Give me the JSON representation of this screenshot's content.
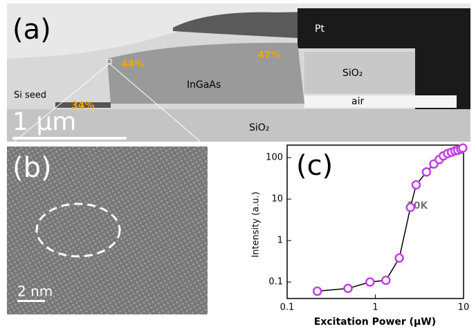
{
  "panel_a": {
    "label": "(a)",
    "texts": [
      "Pt",
      "SiO₂",
      "InGaAs",
      "air",
      "Si seed",
      "SiO₂"
    ],
    "percents": [
      "44%",
      "47%",
      "34%"
    ],
    "scale_bar": "1 μm"
  },
  "panel_b": {
    "label": "(b)",
    "scale_bar": "2 nm"
  },
  "chart_data": {
    "type": "scatter",
    "label": "(c)",
    "annotation": "10K",
    "x_label": "Excitation Power (μW)",
    "y_label": "Intensity (a.u.)",
    "x": [
      0.22,
      0.49,
      0.87,
      1.32,
      1.87,
      2.5,
      2.9,
      3.8,
      4.6,
      5.3,
      5.9,
      6.6,
      7.3,
      8.0,
      8.6,
      9.3,
      9.8
    ],
    "values": [
      0.06,
      0.07,
      0.1,
      0.11,
      0.38,
      6.3,
      22,
      45,
      70,
      90,
      110,
      125,
      135,
      145,
      150,
      160,
      170
    ],
    "color": "#c040e0",
    "line_color": "#000000",
    "xlim": [
      0.1,
      10
    ],
    "ylim": [
      0.04,
      200
    ],
    "xticks": [
      0.1,
      1,
      10
    ],
    "yticks": [
      0.1,
      1,
      10,
      100
    ],
    "xlog": true,
    "ylog": true
  }
}
